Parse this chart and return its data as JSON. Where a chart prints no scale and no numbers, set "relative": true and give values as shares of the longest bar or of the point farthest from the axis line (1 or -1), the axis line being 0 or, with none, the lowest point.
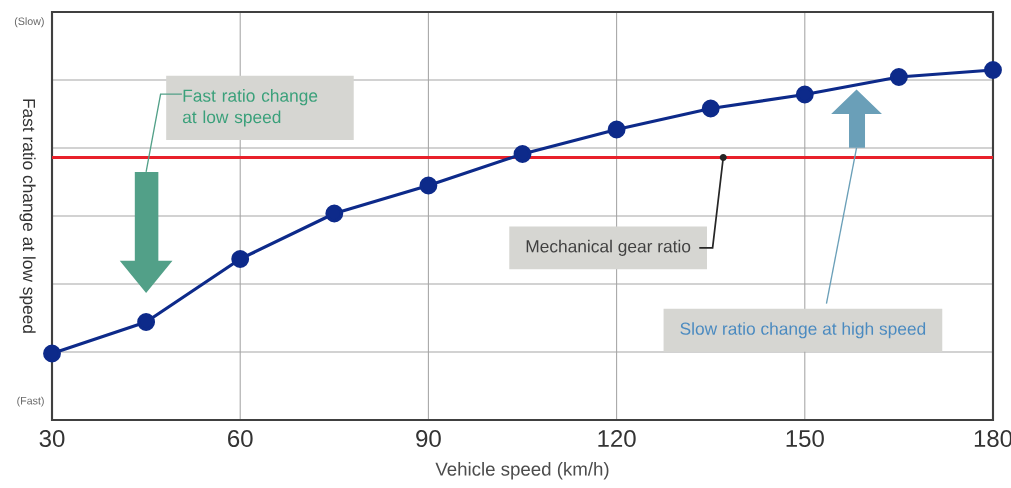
{
  "chart_data": {
    "type": "line",
    "relative": true,
    "xlabel": "Vehicle speed (km/h)",
    "ylabel": "Fast ratio change at low speed",
    "x": [
      30,
      45,
      60,
      75,
      90,
      105,
      120,
      135,
      150,
      165,
      180
    ],
    "series": [
      {
        "color": "#0d2a8a",
        "values": [
          0.19,
          0.28,
          0.46,
          0.59,
          0.67,
          0.76,
          0.83,
          0.89,
          0.93,
          0.98,
          1
        ]
      }
    ],
    "xlim": [
      30,
      180
    ],
    "xticks": [
      30,
      60,
      90,
      120,
      150,
      180
    ],
    "grid": true,
    "marker": "circle",
    "line_style": "solid",
    "tick_labels": "x",
    "ref_lines": [
      {
        "axis": "y",
        "value": 0.75,
        "label": "Mechanical gear ratio",
        "color": "#e8202a"
      }
    ],
    "annotations": [
      "(Slow)",
      "(Fast)",
      "Fast ratio change at low speed",
      "Slow ratio change at high speed"
    ]
  }
}
